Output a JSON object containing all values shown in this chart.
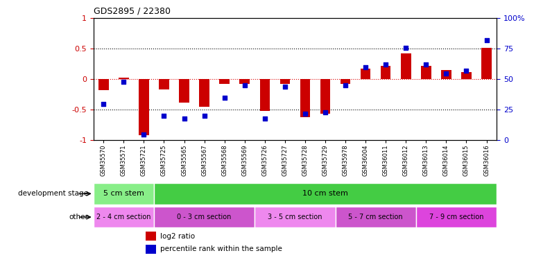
{
  "title": "GDS2895 / 22380",
  "samples": [
    "GSM35570",
    "GSM35571",
    "GSM35721",
    "GSM35725",
    "GSM35565",
    "GSM35567",
    "GSM35568",
    "GSM35569",
    "GSM35726",
    "GSM35727",
    "GSM35728",
    "GSM35729",
    "GSM35978",
    "GSM36004",
    "GSM36011",
    "GSM36012",
    "GSM36013",
    "GSM36014",
    "GSM36015",
    "GSM36016"
  ],
  "log2_ratio": [
    -0.18,
    0.03,
    -0.92,
    -0.17,
    -0.38,
    -0.45,
    -0.07,
    -0.08,
    -0.52,
    -0.08,
    -0.62,
    -0.56,
    -0.07,
    0.18,
    0.22,
    0.42,
    0.22,
    0.15,
    0.12,
    0.52
  ],
  "percentile": [
    30,
    48,
    5,
    20,
    18,
    20,
    35,
    45,
    18,
    44,
    22,
    23,
    45,
    60,
    62,
    76,
    62,
    55,
    57,
    82
  ],
  "bar_color": "#cc0000",
  "dot_color": "#0000cc",
  "bg_color": "#ffffff",
  "plot_bg": "#ffffff",
  "ylim": [
    -1.0,
    1.0
  ],
  "y_ticks_left": [
    -1.0,
    -0.5,
    0.0,
    0.5,
    1.0
  ],
  "y_ticks_right": [
    0,
    25,
    50,
    75,
    100
  ],
  "hline_0_color": "#dd0000",
  "hline_half_color": "#000000",
  "dev_stage_groups": [
    {
      "label": "5 cm stem",
      "start": 0,
      "end": 3,
      "color": "#88ee88"
    },
    {
      "label": "10 cm stem",
      "start": 3,
      "end": 20,
      "color": "#44cc44"
    }
  ],
  "other_groups": [
    {
      "label": "2 - 4 cm section",
      "start": 0,
      "end": 3,
      "color": "#ee88ee"
    },
    {
      "label": "0 - 3 cm section",
      "start": 3,
      "end": 8,
      "color": "#cc55cc"
    },
    {
      "label": "3 - 5 cm section",
      "start": 8,
      "end": 12,
      "color": "#ee88ee"
    },
    {
      "label": "5 - 7 cm section",
      "start": 12,
      "end": 16,
      "color": "#cc55cc"
    },
    {
      "label": "7 - 9 cm section",
      "start": 16,
      "end": 20,
      "color": "#dd44dd"
    }
  ],
  "dev_stage_label": "development stage",
  "other_label": "other",
  "legend_red": "log2 ratio",
  "legend_blue": "percentile rank within the sample",
  "tick_color_left": "#cc0000",
  "tick_color_right": "#0000cc"
}
